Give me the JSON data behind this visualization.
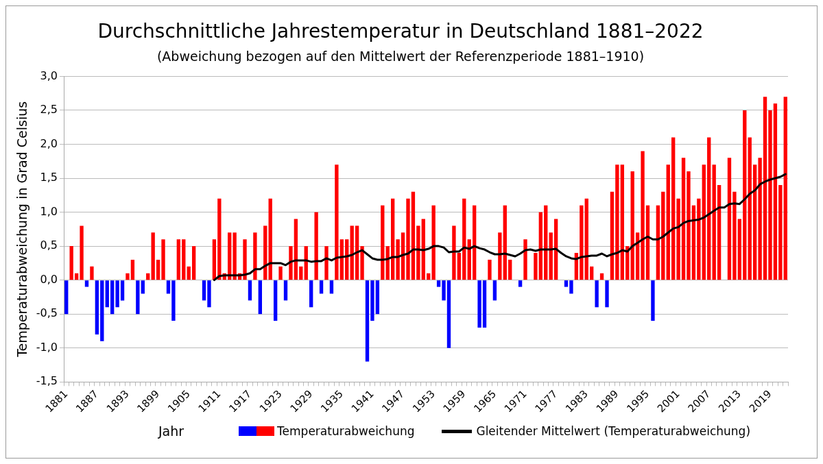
{
  "chart_data": {
    "type": "bar",
    "title": "Durchschnittliche Jahrestemperatur in Deutschland 1881–2022",
    "subtitle": "(Abweichung bezogen auf den Mittelwert der Referenzperiode 1881–1910)",
    "xlabel": "Jahr",
    "ylabel": "Temperaturabweichung in Grad Celsius",
    "categories": [
      "1881",
      null,
      null,
      null,
      null,
      null,
      "1887",
      null,
      null,
      null,
      null,
      null,
      "1893",
      null,
      null,
      null,
      null,
      null,
      "1899",
      null,
      null,
      null,
      null,
      null,
      "1905",
      null,
      null,
      null,
      null,
      null,
      "1911",
      null,
      null,
      null,
      null,
      null,
      "1917",
      null,
      null,
      null,
      null,
      null,
      "1923",
      null,
      null,
      null,
      null,
      null,
      "1929",
      null,
      null,
      null,
      null,
      null,
      "1935",
      null,
      null,
      null,
      null,
      null,
      "1941",
      null,
      null,
      null,
      null,
      null,
      "1947",
      null,
      null,
      null,
      null,
      null,
      "1953",
      null,
      null,
      null,
      null,
      null,
      "1959",
      null,
      null,
      null,
      null,
      null,
      "1965",
      null,
      null,
      null,
      null,
      null,
      "1971",
      null,
      null,
      null,
      null,
      null,
      "1977",
      null,
      null,
      null,
      null,
      null,
      "1983",
      null,
      null,
      null,
      null,
      null,
      "1989",
      null,
      null,
      null,
      null,
      null,
      "1995",
      null,
      null,
      null,
      null,
      null,
      "2001",
      null,
      null,
      null,
      null,
      null,
      "2007",
      null,
      null,
      null,
      null,
      null,
      "2013",
      null,
      null,
      null,
      null,
      null,
      "2019",
      null,
      null,
      null
    ],
    "series": [
      {
        "name": "Temperaturabweichung",
        "values": [
          -0.5,
          0.5,
          0.1,
          0.8,
          -0.1,
          0.2,
          -0.8,
          -0.9,
          -0.4,
          -0.5,
          -0.4,
          -0.3,
          0.1,
          0.3,
          -0.5,
          -0.2,
          0.1,
          0.7,
          0.3,
          0.6,
          -0.2,
          -0.6,
          0.6,
          0.6,
          0.2,
          0.5,
          0,
          -0.3,
          -0.4,
          0.6,
          1.2,
          0.1,
          0.7,
          0.7,
          0.1,
          0.6,
          -0.3,
          0.7,
          -0.5,
          0.8,
          1.2,
          -0.6,
          0.2,
          -0.3,
          0.5,
          0.9,
          0.2,
          0.5,
          -0.4,
          1.0,
          -0.2,
          0.5,
          -0.2,
          1.7,
          0.6,
          0.6,
          0.8,
          0.8,
          0.5,
          -1.2,
          -0.6,
          -0.5,
          1.1,
          0.5,
          1.2,
          0.6,
          0.7,
          1.2,
          1.3,
          0.8,
          0.9,
          0.1,
          1.1,
          -0.1,
          -0.3,
          -1.0,
          0.8,
          0.4,
          1.2,
          0.6,
          1.1,
          -0.7,
          -0.7,
          0.3,
          -0.3,
          0.7,
          1.1,
          0.3,
          0,
          -0.1,
          0.6,
          0,
          0.4,
          1.0,
          1.1,
          0.7,
          0.9,
          0,
          -0.1,
          -0.2,
          0.4,
          1.1,
          1.2,
          0.2,
          -0.4,
          0.1,
          -0.4,
          1.3,
          1.7,
          1.7,
          0.5,
          1.6,
          0.7,
          1.9,
          1.1,
          -0.6,
          1.1,
          1.3,
          1.7,
          2.1,
          1.2,
          1.8,
          1.6,
          1.1,
          1.2,
          1.7,
          2.1,
          1.7,
          1.4,
          0,
          1.8,
          1.3,
          0.9,
          2.5,
          2.1,
          1.7,
          1.8,
          2.7,
          2.5,
          2.6,
          1.4,
          2.7
        ],
        "colors": [
          "#0000ff",
          "#ff0000",
          "#ff0000",
          "#ff0000",
          "#0000ff",
          "#ff0000",
          "#0000ff",
          "#0000ff",
          "#0000ff",
          "#0000ff",
          "#0000ff",
          "#0000ff",
          "#ff0000",
          "#ff0000",
          "#0000ff",
          "#0000ff",
          "#ff0000",
          "#ff0000",
          "#ff0000",
          "#ff0000",
          "#0000ff",
          "#0000ff",
          "#ff0000",
          "#ff0000",
          "#ff0000",
          "#ff0000",
          "#ff0000",
          "#0000ff",
          "#0000ff",
          "#ff0000",
          "#ff0000",
          "#ff0000",
          "#ff0000",
          "#ff0000",
          "#ff0000",
          "#ff0000",
          "#0000ff",
          "#ff0000",
          "#0000ff",
          "#ff0000",
          "#ff0000",
          "#0000ff",
          "#ff0000",
          "#0000ff",
          "#ff0000",
          "#ff0000",
          "#ff0000",
          "#ff0000",
          "#0000ff",
          "#ff0000",
          "#0000ff",
          "#ff0000",
          "#0000ff",
          "#ff0000",
          "#ff0000",
          "#ff0000",
          "#ff0000",
          "#ff0000",
          "#ff0000",
          "#0000ff",
          "#0000ff",
          "#0000ff",
          "#ff0000",
          "#ff0000",
          "#ff0000",
          "#ff0000",
          "#ff0000",
          "#ff0000",
          "#ff0000",
          "#ff0000",
          "#ff0000",
          "#ff0000",
          "#ff0000",
          "#0000ff",
          "#0000ff",
          "#0000ff",
          "#ff0000",
          "#ff0000",
          "#ff0000",
          "#ff0000",
          "#ff0000",
          "#0000ff",
          "#0000ff",
          "#ff0000",
          "#0000ff",
          "#ff0000",
          "#ff0000",
          "#ff0000",
          "#ff0000",
          "#0000ff",
          "#ff0000",
          "#ff0000",
          "#ff0000",
          "#ff0000",
          "#ff0000",
          "#ff0000",
          "#ff0000",
          "#ff0000",
          "#0000ff",
          "#0000ff",
          "#ff0000",
          "#ff0000",
          "#ff0000",
          "#ff0000",
          "#0000ff",
          "#ff0000",
          "#0000ff",
          "#ff0000",
          "#ff0000",
          "#ff0000",
          "#ff0000",
          "#ff0000",
          "#ff0000",
          "#ff0000",
          "#ff0000",
          "#0000ff",
          "#ff0000",
          "#ff0000",
          "#ff0000",
          "#ff0000",
          "#ff0000",
          "#ff0000",
          "#ff0000",
          "#ff0000",
          "#ff0000",
          "#ff0000",
          "#ff0000",
          "#ff0000",
          "#ff0000",
          "#ff0000",
          "#ff0000",
          "#ff0000",
          "#ff0000",
          "#ff0000",
          "#ff0000",
          "#ff0000",
          "#ff0000",
          "#ff0000",
          "#ff0000",
          "#ff0000",
          "#ff0000",
          "#ff0000"
        ]
      },
      {
        "name": "Gleitender Mittelwert (Temperaturabweichung)",
        "type": "line",
        "color": "#000000",
        "values": [
          null,
          null,
          null,
          null,
          null,
          null,
          null,
          null,
          null,
          null,
          null,
          null,
          null,
          null,
          null,
          null,
          null,
          null,
          null,
          null,
          null,
          null,
          null,
          null,
          null,
          null,
          null,
          null,
          null,
          0,
          0.06,
          0.07,
          0.07,
          0.07,
          0.07,
          0.08,
          0.1,
          0.16,
          0.16,
          0.21,
          0.25,
          0.25,
          0.25,
          0.22,
          0.27,
          0.29,
          0.29,
          0.29,
          0.27,
          0.28,
          0.28,
          0.32,
          0.29,
          0.33,
          0.34,
          0.35,
          0.37,
          0.41,
          0.44,
          0.38,
          0.32,
          0.3,
          0.3,
          0.31,
          0.34,
          0.34,
          0.37,
          0.39,
          0.45,
          0.45,
          0.44,
          0.46,
          0.5,
          0.5,
          0.48,
          0.41,
          0.42,
          0.42,
          0.48,
          0.46,
          0.5,
          0.47,
          0.45,
          0.41,
          0.38,
          0.38,
          0.39,
          0.37,
          0.35,
          0.39,
          0.44,
          0.45,
          0.43,
          0.45,
          0.45,
          0.45,
          0.46,
          0.4,
          0.35,
          0.32,
          0.31,
          0.34,
          0.35,
          0.36,
          0.36,
          0.39,
          0.35,
          0.38,
          0.4,
          0.44,
          0.42,
          0.5,
          0.55,
          0.6,
          0.64,
          0.6,
          0.6,
          0.64,
          0.7,
          0.76,
          0.78,
          0.84,
          0.87,
          0.88,
          0.89,
          0.92,
          0.97,
          1.02,
          1.07,
          1.07,
          1.12,
          1.13,
          1.12,
          1.19,
          1.27,
          1.32,
          1.41,
          1.45,
          1.48,
          1.5,
          1.52,
          1.56
        ]
      }
    ],
    "ylim": [
      -1.5,
      3.0
    ],
    "yticks": [
      {
        "value": -1.5,
        "label": "-1,5"
      },
      {
        "value": -1,
        "label": "-1,0"
      },
      {
        "value": -0.5,
        "label": "-0,5"
      },
      {
        "value": 0,
        "label": "0,0"
      },
      {
        "value": 0.5,
        "label": "0,5"
      },
      {
        "value": 1,
        "label": "1,0"
      },
      {
        "value": 1.5,
        "label": "1,5"
      },
      {
        "value": 2,
        "label": "2,0"
      },
      {
        "value": 2.5,
        "label": "2,5"
      },
      {
        "value": 3,
        "label": "3,0"
      }
    ],
    "grid": "y",
    "legend": "bottom",
    "marker": "none",
    "line_style": "solid"
  }
}
